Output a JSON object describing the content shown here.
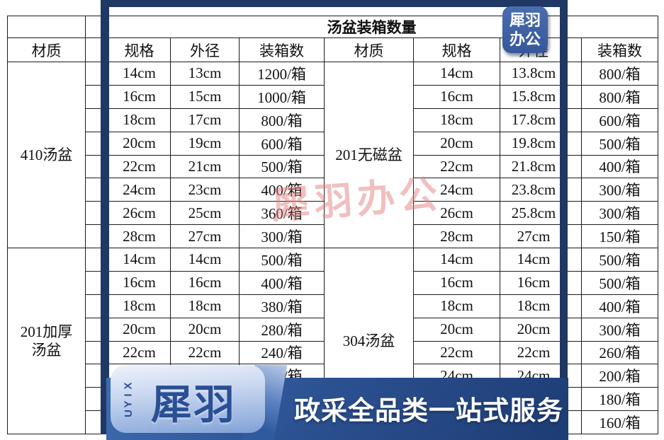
{
  "title": "汤盆装箱数量",
  "watermark": "犀羽办公",
  "badge": {
    "line1": "犀羽",
    "line2": "办公"
  },
  "banner": {
    "brand_vertical": "XIYU",
    "brand": "犀羽",
    "slogan": "政采全品类一站式服务"
  },
  "colors": {
    "frame_navy": "#1f3864",
    "badge_blue": "#3a5fa3",
    "banner_blue": "#2c5191",
    "banner_light": "#c9d7f0",
    "watermark_pink": "#e48080",
    "text": "#111111"
  },
  "table": {
    "headers": {
      "material": "材质",
      "spec": "规格",
      "od": "外径",
      "qty": "装箱数",
      "blank": ""
    },
    "left_sections": [
      {
        "material": "410汤盆",
        "rows": [
          [
            "14cm",
            "13cm",
            "1200/箱"
          ],
          [
            "16cm",
            "15cm",
            "1000/箱"
          ],
          [
            "18cm",
            "17cm",
            "800/箱"
          ],
          [
            "20cm",
            "19cm",
            "600/箱"
          ],
          [
            "22cm",
            "21cm",
            "500/箱"
          ],
          [
            "24cm",
            "23cm",
            "400/箱"
          ],
          [
            "26cm",
            "25cm",
            "360/箱"
          ],
          [
            "28cm",
            "27cm",
            "300/箱"
          ]
        ]
      },
      {
        "material": "201加厚汤盆",
        "material_lines": [
          "201加厚",
          "汤盆"
        ],
        "rows": [
          [
            "14cm",
            "14cm",
            "500/箱"
          ],
          [
            "16cm",
            "16cm",
            "400/箱"
          ],
          [
            "18cm",
            "18cm",
            "380/箱"
          ],
          [
            "20cm",
            "20cm",
            "280/箱"
          ],
          [
            "22cm",
            "22cm",
            "240/箱"
          ],
          [
            "24cm",
            "24cm",
            "200/箱"
          ],
          [
            "",
            "",
            ""
          ],
          [
            "",
            "",
            ""
          ]
        ]
      }
    ],
    "right_sections": [
      {
        "material": "201无磁盆",
        "rows": [
          [
            "14cm",
            "13.8cm",
            "800/箱"
          ],
          [
            "16cm",
            "15.8cm",
            "800/箱"
          ],
          [
            "18cm",
            "17.8cm",
            "600/箱"
          ],
          [
            "20cm",
            "19.8cm",
            "500/箱"
          ],
          [
            "22cm",
            "21.8cm",
            "400/箱"
          ],
          [
            "24cm",
            "23.8cm",
            "300/箱"
          ],
          [
            "26cm",
            "25.8cm",
            "300/箱"
          ],
          [
            "28cm",
            "27cm",
            "150/箱"
          ]
        ]
      },
      {
        "material": "304汤盆",
        "rows": [
          [
            "14cm",
            "14cm",
            "500/箱"
          ],
          [
            "16cm",
            "16cm",
            "500/箱"
          ],
          [
            "18cm",
            "18cm",
            "400/箱"
          ],
          [
            "20cm",
            "20cm",
            "300/箱"
          ],
          [
            "22cm",
            "22cm",
            "260/箱"
          ],
          [
            "24cm",
            "24cm",
            "200/箱"
          ],
          [
            "",
            "",
            "180/箱"
          ],
          [
            "",
            "",
            "160/箱"
          ]
        ]
      }
    ]
  }
}
